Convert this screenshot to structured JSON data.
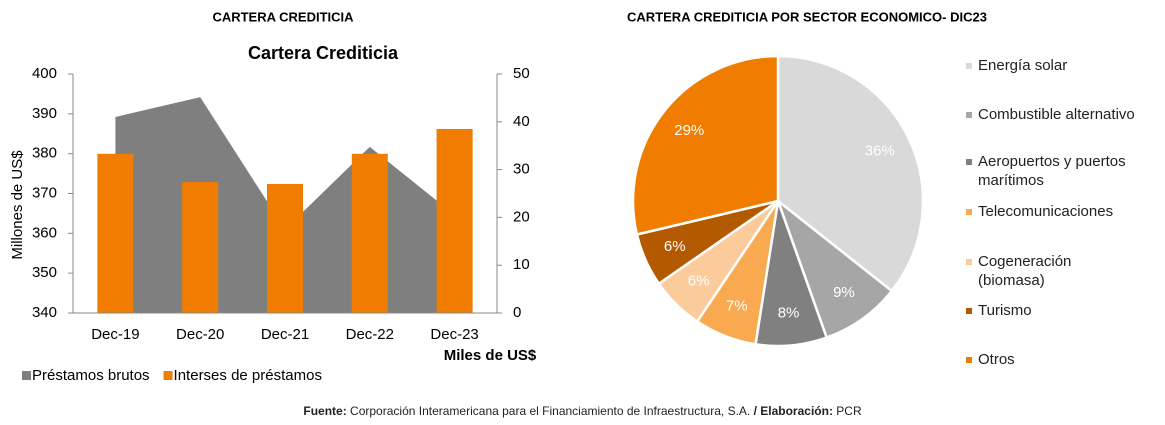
{
  "chart_data": [
    {
      "type": "combo",
      "title": "CARTERA CREDITICIA",
      "chart_title": "Cartera Crediticia",
      "y_label": "Millones de US$",
      "y2_label": "Miles de US$",
      "categories": [
        "Dec-19",
        "Dec-20",
        "Dec-21",
        "Dec-22",
        "Dec-23"
      ],
      "series": [
        {
          "name": "Préstamos brutos",
          "color": "#7f7f7f",
          "kind": "area",
          "values": [
            389.2,
            394.2,
            361,
            381.7,
            364.6
          ]
        },
        {
          "name": "Interses de préstamos",
          "color": "#f07c00",
          "kind": "bar",
          "axis": "y2",
          "values": [
            33.3,
            27.4,
            27,
            33.3,
            38.5
          ]
        }
      ],
      "ylim": [
        340,
        400
      ],
      "yticks": [
        340,
        350,
        360,
        370,
        380,
        390,
        400
      ],
      "y2lim": [
        0,
        50
      ],
      "y2ticks": [
        0,
        10,
        20,
        30,
        40,
        50
      ],
      "legend": "bottom"
    },
    {
      "type": "pie",
      "title": "CARTERA CREDITICIA POR SECTOR ECONOMICO- DIC23",
      "categories": [
        "Energía solar",
        "Combustible alternativo",
        "Aeropuertos y puertos marítimos",
        "Telecomunicaciones",
        "Cogeneración (biomasa)",
        "Turismo",
        "Otros"
      ],
      "values": [
        36,
        9,
        8,
        7,
        6,
        6,
        29
      ],
      "value_labels": [
        "36%",
        "9%",
        "8%",
        "7%",
        "6%",
        "6%",
        "29%"
      ],
      "colors": [
        "#d9d9d9",
        "#a6a6a6",
        "#808080",
        "#f9a94f",
        "#fbcb9b",
        "#b35a00",
        "#f07c00"
      ],
      "legend": "right"
    }
  ],
  "footer": {
    "source_label": "Fuente:",
    "source": "Corporación Interamericana para el Financiamiento de Infraestructura, S.A.",
    "author_label": "/ Elaboración:",
    "author": "PCR"
  }
}
